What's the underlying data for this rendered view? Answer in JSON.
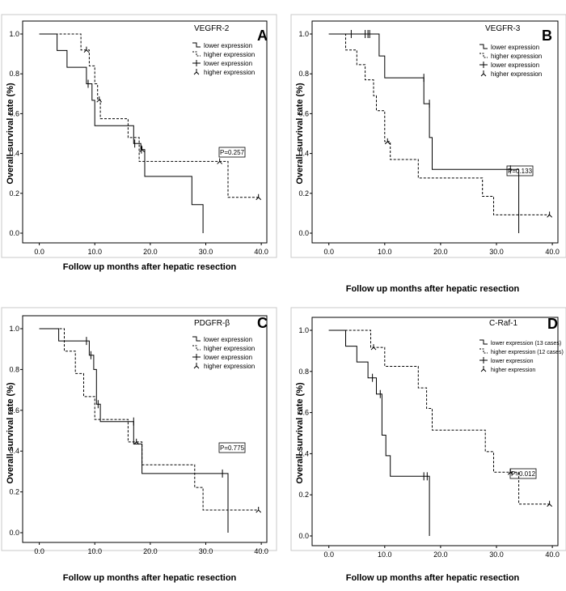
{
  "chart_data": [
    {
      "type": "line",
      "subtype": "kaplan-meier",
      "panel_letter": "A",
      "title": "VEGFR-2",
      "xlabel": "Follow up months after hepatic resection",
      "ylabel": "Overall survival rate (%)",
      "xlim": [
        -3,
        41
      ],
      "ylim": [
        0,
        1
      ],
      "x_ticks": [
        "0.0",
        "10.0",
        "20.0",
        "30.0",
        "40.0"
      ],
      "y_ticks": [
        "0.0",
        "0.2",
        "0.4",
        "0.6",
        "0.8",
        "1.0"
      ],
      "legend": [
        "lower expression",
        "higher expression",
        "lower expression",
        "higher expression"
      ],
      "p_value": "P=0.257",
      "series": [
        {
          "name": "lower expression",
          "style": "solid",
          "steps": [
            [
              0,
              1.0
            ],
            [
              3.2,
              0.917
            ],
            [
              5.0,
              0.833
            ],
            [
              8.5,
              0.75
            ],
            [
              9.5,
              0.667
            ],
            [
              10.0,
              0.54
            ],
            [
              17.0,
              0.45
            ],
            [
              18.3,
              0.42
            ],
            [
              19.0,
              0.285
            ],
            [
              27.5,
              0.143
            ],
            [
              29.5,
              0.0
            ]
          ],
          "censored": [
            [
              8.8,
              0.75
            ],
            [
              17.2,
              0.45
            ],
            [
              18.4,
              0.42
            ]
          ]
        },
        {
          "name": "higher expression",
          "style": "dashed",
          "steps": [
            [
              0,
              1.0
            ],
            [
              7.5,
              0.92
            ],
            [
              9.0,
              0.84
            ],
            [
              10.0,
              0.75
            ],
            [
              10.5,
              0.67
            ],
            [
              11.0,
              0.575
            ],
            [
              16.0,
              0.48
            ],
            [
              18.0,
              0.36
            ],
            [
              34.0,
              0.18
            ],
            [
              39.5,
              0.18
            ]
          ],
          "censored": [
            [
              8.5,
              0.92
            ],
            [
              10.8,
              0.67
            ],
            [
              18.5,
              0.42
            ],
            [
              32.5,
              0.36
            ],
            [
              39.5,
              0.18
            ]
          ]
        }
      ]
    },
    {
      "type": "line",
      "subtype": "kaplan-meier",
      "panel_letter": "B",
      "title": "VEGFR-3",
      "xlabel": "Follow up months after hepatic resection",
      "ylabel": "Overall survival rate (%)",
      "xlim": [
        -3,
        41
      ],
      "ylim": [
        0,
        1
      ],
      "x_ticks": [
        "0.0",
        "10.0",
        "20.0",
        "30.0",
        "40.0"
      ],
      "y_ticks": [
        "0.0",
        "0.2",
        "0.4",
        "0.6",
        "0.8",
        "1.0"
      ],
      "legend": [
        "lower expression",
        "higher expression",
        "lower expression",
        "higher expression"
      ],
      "p_value": "P=0.133",
      "series": [
        {
          "name": "lower expression",
          "style": "solid",
          "steps": [
            [
              0,
              1.0
            ],
            [
              9.0,
              0.89
            ],
            [
              10.0,
              0.78
            ],
            [
              17.0,
              0.65
            ],
            [
              18.0,
              0.48
            ],
            [
              18.5,
              0.32
            ],
            [
              34.0,
              0.0
            ]
          ],
          "censored": [
            [
              4.0,
              1.0
            ],
            [
              6.5,
              1.0
            ],
            [
              7.0,
              1.0
            ],
            [
              7.3,
              1.0
            ],
            [
              17.0,
              0.78
            ],
            [
              18.0,
              0.65
            ],
            [
              32.5,
              0.32
            ]
          ]
        },
        {
          "name": "higher expression",
          "style": "dashed",
          "steps": [
            [
              0,
              1.0
            ],
            [
              3.0,
              0.92
            ],
            [
              5.0,
              0.846
            ],
            [
              6.5,
              0.77
            ],
            [
              8.0,
              0.69
            ],
            [
              8.5,
              0.615
            ],
            [
              10.0,
              0.46
            ],
            [
              11.0,
              0.37
            ],
            [
              16.0,
              0.277
            ],
            [
              27.5,
              0.185
            ],
            [
              29.5,
              0.092
            ],
            [
              39.5,
              0.092
            ]
          ],
          "censored": [
            [
              10.5,
              0.46
            ],
            [
              39.5,
              0.092
            ]
          ]
        }
      ]
    },
    {
      "type": "line",
      "subtype": "kaplan-meier",
      "panel_letter": "C",
      "title": "PDGFR-β",
      "xlabel": "Follow up months after hepatic resection",
      "ylabel": "Overall survival rate (%)",
      "xlim": [
        -3,
        41
      ],
      "ylim": [
        0,
        1
      ],
      "x_ticks": [
        "0.0",
        "10.0",
        "20.0",
        "30.0",
        "40.0"
      ],
      "y_ticks": [
        "0.0",
        "0.2",
        "0.4",
        "0.6",
        "0.8",
        "1.0"
      ],
      "legend": [
        "lower expression",
        "higher expression",
        "lower expression",
        "higher expression"
      ],
      "p_value": "P=0.775",
      "series": [
        {
          "name": "lower expression",
          "style": "solid",
          "steps": [
            [
              0,
              1.0
            ],
            [
              3.5,
              0.94
            ],
            [
              9.0,
              0.87
            ],
            [
              9.8,
              0.8
            ],
            [
              10.3,
              0.63
            ],
            [
              11.0,
              0.545
            ],
            [
              17.0,
              0.435
            ],
            [
              18.5,
              0.29
            ],
            [
              34.0,
              0.0
            ]
          ],
          "censored": [
            [
              8.5,
              0.94
            ],
            [
              9.3,
              0.87
            ],
            [
              10.6,
              0.63
            ],
            [
              17.0,
              0.545
            ],
            [
              33.0,
              0.29
            ]
          ]
        },
        {
          "name": "higher expression",
          "style": "dashed",
          "steps": [
            [
              0,
              1.0
            ],
            [
              4.5,
              0.89
            ],
            [
              6.5,
              0.78
            ],
            [
              8.0,
              0.667
            ],
            [
              10.0,
              0.555
            ],
            [
              16.0,
              0.445
            ],
            [
              18.5,
              0.333
            ],
            [
              28.0,
              0.222
            ],
            [
              29.5,
              0.111
            ],
            [
              39.5,
              0.111
            ]
          ],
          "censored": [
            [
              17.5,
              0.445
            ],
            [
              39.5,
              0.111
            ]
          ]
        }
      ]
    },
    {
      "type": "line",
      "subtype": "kaplan-meier",
      "panel_letter": "D",
      "title": "C-Raf-1",
      "xlabel": "Follow up months after hepatic resection",
      "ylabel": "Overall survival rate (%)",
      "xlim": [
        -3,
        41
      ],
      "ylim": [
        0,
        1
      ],
      "x_ticks": [
        "0.0",
        "10.0",
        "20.0",
        "30.0",
        "40.0"
      ],
      "y_ticks": [
        "0.0",
        "0.2",
        "0.4",
        "0.6",
        "0.8",
        "1.0"
      ],
      "legend": [
        "lower expression (13 cases)",
        "higher expression (12 cases)",
        "lower expression",
        "higher expression"
      ],
      "p_value": "P=0.012",
      "series": [
        {
          "name": "lower expression (13 cases)",
          "style": "solid",
          "steps": [
            [
              0,
              1.0
            ],
            [
              3.0,
              0.923
            ],
            [
              5.0,
              0.846
            ],
            [
              7.0,
              0.769
            ],
            [
              8.5,
              0.69
            ],
            [
              9.5,
              0.49
            ],
            [
              10.2,
              0.39
            ],
            [
              11.0,
              0.29
            ],
            [
              18.0,
              0.0
            ]
          ],
          "censored": [
            [
              7.8,
              0.769
            ],
            [
              9.2,
              0.69
            ],
            [
              17.0,
              0.29
            ],
            [
              17.6,
              0.29
            ]
          ]
        },
        {
          "name": "higher expression (12 cases)",
          "style": "dashed",
          "steps": [
            [
              0,
              1.0
            ],
            [
              7.5,
              0.917
            ],
            [
              10.0,
              0.825
            ],
            [
              16.0,
              0.72
            ],
            [
              17.5,
              0.62
            ],
            [
              18.5,
              0.515
            ],
            [
              28.0,
              0.41
            ],
            [
              29.5,
              0.31
            ],
            [
              34.0,
              0.155
            ],
            [
              39.5,
              0.155
            ]
          ],
          "censored": [
            [
              8.0,
              0.917
            ],
            [
              32.5,
              0.31
            ],
            [
              39.5,
              0.155
            ]
          ]
        }
      ]
    }
  ]
}
